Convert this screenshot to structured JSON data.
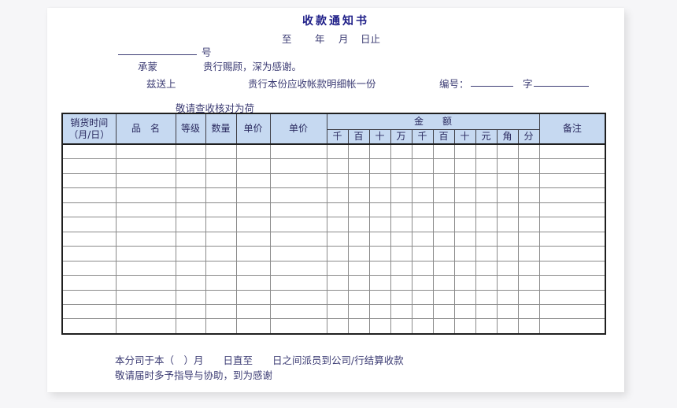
{
  "colors": {
    "canvas_bg": "#f6f6f8",
    "page_bg": "#ffffff",
    "title_color": "#1b1b86",
    "text_color": "#3c3c74",
    "table_header_bg": "#c6d9f1",
    "table_header_text": "#29295e",
    "outer_border": "#1f1f1f",
    "inner_border": "#8a8a8a"
  },
  "header": {
    "title": "收款通知书",
    "date_tokens": [
      "至",
      "年",
      "月",
      "日止"
    ],
    "number_suffix": "号",
    "salutation_prefix": "承蒙",
    "salutation_text": "贵行赐顾，深为感谢。",
    "deliver_prefix": "兹送上",
    "deliver_text": "贵行本份应收帐款明细帐一份",
    "ref_label": "编号：",
    "ref_word": "字",
    "check_note": "敬请查收核对为荷"
  },
  "table": {
    "col_time_line1": "销货时间",
    "col_time_line2": "（月/日）",
    "col_product": "品　名",
    "col_grade": "等级",
    "col_quantity": "数量",
    "col_unit_price_1": "单价",
    "col_unit_price_2": "单价",
    "col_amount": "金　　额",
    "digit_headers": [
      "千",
      "百",
      "十",
      "万",
      "千",
      "百",
      "十",
      "元",
      "角",
      "分"
    ],
    "col_remark": "备注",
    "body_row_count": 13,
    "body_col_count": 17
  },
  "footer": {
    "line1": "本分司于本（　）月　　日直至　　日之间派员到公司/行结算收款",
    "line2": "敬请届时多予指导与协助，到为感谢"
  }
}
